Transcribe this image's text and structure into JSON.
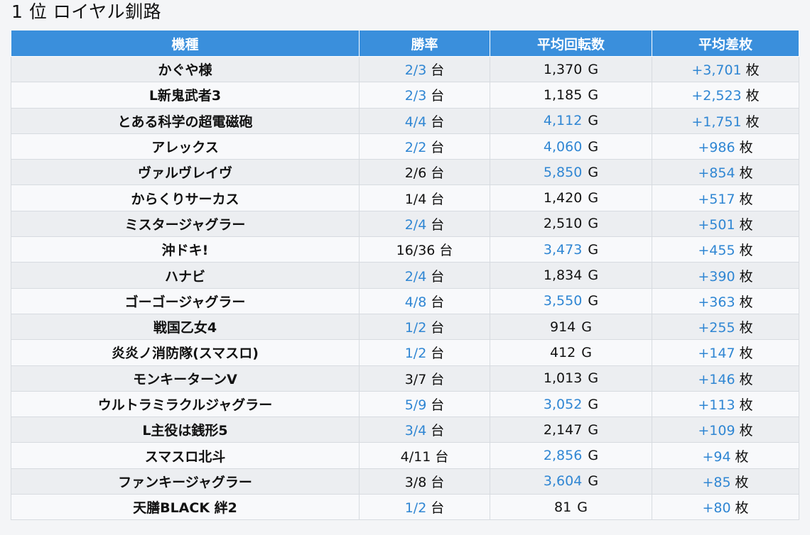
{
  "title": "1 位 ロイヤル釧路",
  "colors": {
    "header_bg": "#3a8fdc",
    "highlight": "#2f86d3",
    "row_odd": "#eceef1",
    "row_even": "#f8f9fb"
  },
  "table": {
    "headers": [
      "機種",
      "勝率",
      "平均回転数",
      "平均差枚"
    ],
    "rows": [
      {
        "machine": "かぐや様",
        "win_rate": "2/3",
        "win_unit": "台",
        "win_hl": true,
        "spins": "1,370",
        "spins_unit": "G",
        "spins_hl": false,
        "diff": "+3,701",
        "diff_unit": "枚",
        "diff_hl": true
      },
      {
        "machine": "L新鬼武者3",
        "win_rate": "2/3",
        "win_unit": "台",
        "win_hl": true,
        "spins": "1,185",
        "spins_unit": "G",
        "spins_hl": false,
        "diff": "+2,523",
        "diff_unit": "枚",
        "diff_hl": true
      },
      {
        "machine": "とある科学の超電磁砲",
        "win_rate": "4/4",
        "win_unit": "台",
        "win_hl": true,
        "spins": "4,112",
        "spins_unit": "G",
        "spins_hl": true,
        "diff": "+1,751",
        "diff_unit": "枚",
        "diff_hl": true
      },
      {
        "machine": "アレックス",
        "win_rate": "2/2",
        "win_unit": "台",
        "win_hl": true,
        "spins": "4,060",
        "spins_unit": "G",
        "spins_hl": true,
        "diff": "+986",
        "diff_unit": "枚",
        "diff_hl": true
      },
      {
        "machine": "ヴァルヴレイヴ",
        "win_rate": "2/6",
        "win_unit": "台",
        "win_hl": false,
        "spins": "5,850",
        "spins_unit": "G",
        "spins_hl": true,
        "diff": "+854",
        "diff_unit": "枚",
        "diff_hl": true
      },
      {
        "machine": "からくりサーカス",
        "win_rate": "1/4",
        "win_unit": "台",
        "win_hl": false,
        "spins": "1,420",
        "spins_unit": "G",
        "spins_hl": false,
        "diff": "+517",
        "diff_unit": "枚",
        "diff_hl": true
      },
      {
        "machine": "ミスタージャグラー",
        "win_rate": "2/4",
        "win_unit": "台",
        "win_hl": true,
        "spins": "2,510",
        "spins_unit": "G",
        "spins_hl": false,
        "diff": "+501",
        "diff_unit": "枚",
        "diff_hl": true
      },
      {
        "machine": "沖ドキ!",
        "win_rate": "16/36",
        "win_unit": "台",
        "win_hl": false,
        "spins": "3,473",
        "spins_unit": "G",
        "spins_hl": true,
        "diff": "+455",
        "diff_unit": "枚",
        "diff_hl": true
      },
      {
        "machine": "ハナビ",
        "win_rate": "2/4",
        "win_unit": "台",
        "win_hl": true,
        "spins": "1,834",
        "spins_unit": "G",
        "spins_hl": false,
        "diff": "+390",
        "diff_unit": "枚",
        "diff_hl": true
      },
      {
        "machine": "ゴーゴージャグラー",
        "win_rate": "4/8",
        "win_unit": "台",
        "win_hl": true,
        "spins": "3,550",
        "spins_unit": "G",
        "spins_hl": true,
        "diff": "+363",
        "diff_unit": "枚",
        "diff_hl": true
      },
      {
        "machine": "戦国乙女4",
        "win_rate": "1/2",
        "win_unit": "台",
        "win_hl": true,
        "spins": "914",
        "spins_unit": "G",
        "spins_hl": false,
        "diff": "+255",
        "diff_unit": "枚",
        "diff_hl": true
      },
      {
        "machine": "炎炎ノ消防隊(スマスロ)",
        "win_rate": "1/2",
        "win_unit": "台",
        "win_hl": true,
        "spins": "412",
        "spins_unit": "G",
        "spins_hl": false,
        "diff": "+147",
        "diff_unit": "枚",
        "diff_hl": true
      },
      {
        "machine": "モンキーターンV",
        "win_rate": "3/7",
        "win_unit": "台",
        "win_hl": false,
        "spins": "1,013",
        "spins_unit": "G",
        "spins_hl": false,
        "diff": "+146",
        "diff_unit": "枚",
        "diff_hl": true
      },
      {
        "machine": "ウルトラミラクルジャグラー",
        "win_rate": "5/9",
        "win_unit": "台",
        "win_hl": true,
        "spins": "3,052",
        "spins_unit": "G",
        "spins_hl": true,
        "diff": "+113",
        "diff_unit": "枚",
        "diff_hl": true
      },
      {
        "machine": "L主役は銭形5",
        "win_rate": "3/4",
        "win_unit": "台",
        "win_hl": true,
        "spins": "2,147",
        "spins_unit": "G",
        "spins_hl": false,
        "diff": "+109",
        "diff_unit": "枚",
        "diff_hl": true
      },
      {
        "machine": "スマスロ北斗",
        "win_rate": "4/11",
        "win_unit": "台",
        "win_hl": false,
        "spins": "2,856",
        "spins_unit": "G",
        "spins_hl": true,
        "diff": "+94",
        "diff_unit": "枚",
        "diff_hl": true
      },
      {
        "machine": "ファンキージャグラー",
        "win_rate": "3/8",
        "win_unit": "台",
        "win_hl": false,
        "spins": "3,604",
        "spins_unit": "G",
        "spins_hl": true,
        "diff": "+85",
        "diff_unit": "枚",
        "diff_hl": true
      },
      {
        "machine": "天膳BLACK 絆2",
        "win_rate": "1/2",
        "win_unit": "台",
        "win_hl": true,
        "spins": "81",
        "spins_unit": "G",
        "spins_hl": false,
        "diff": "+80",
        "diff_unit": "枚",
        "diff_hl": true
      }
    ]
  }
}
